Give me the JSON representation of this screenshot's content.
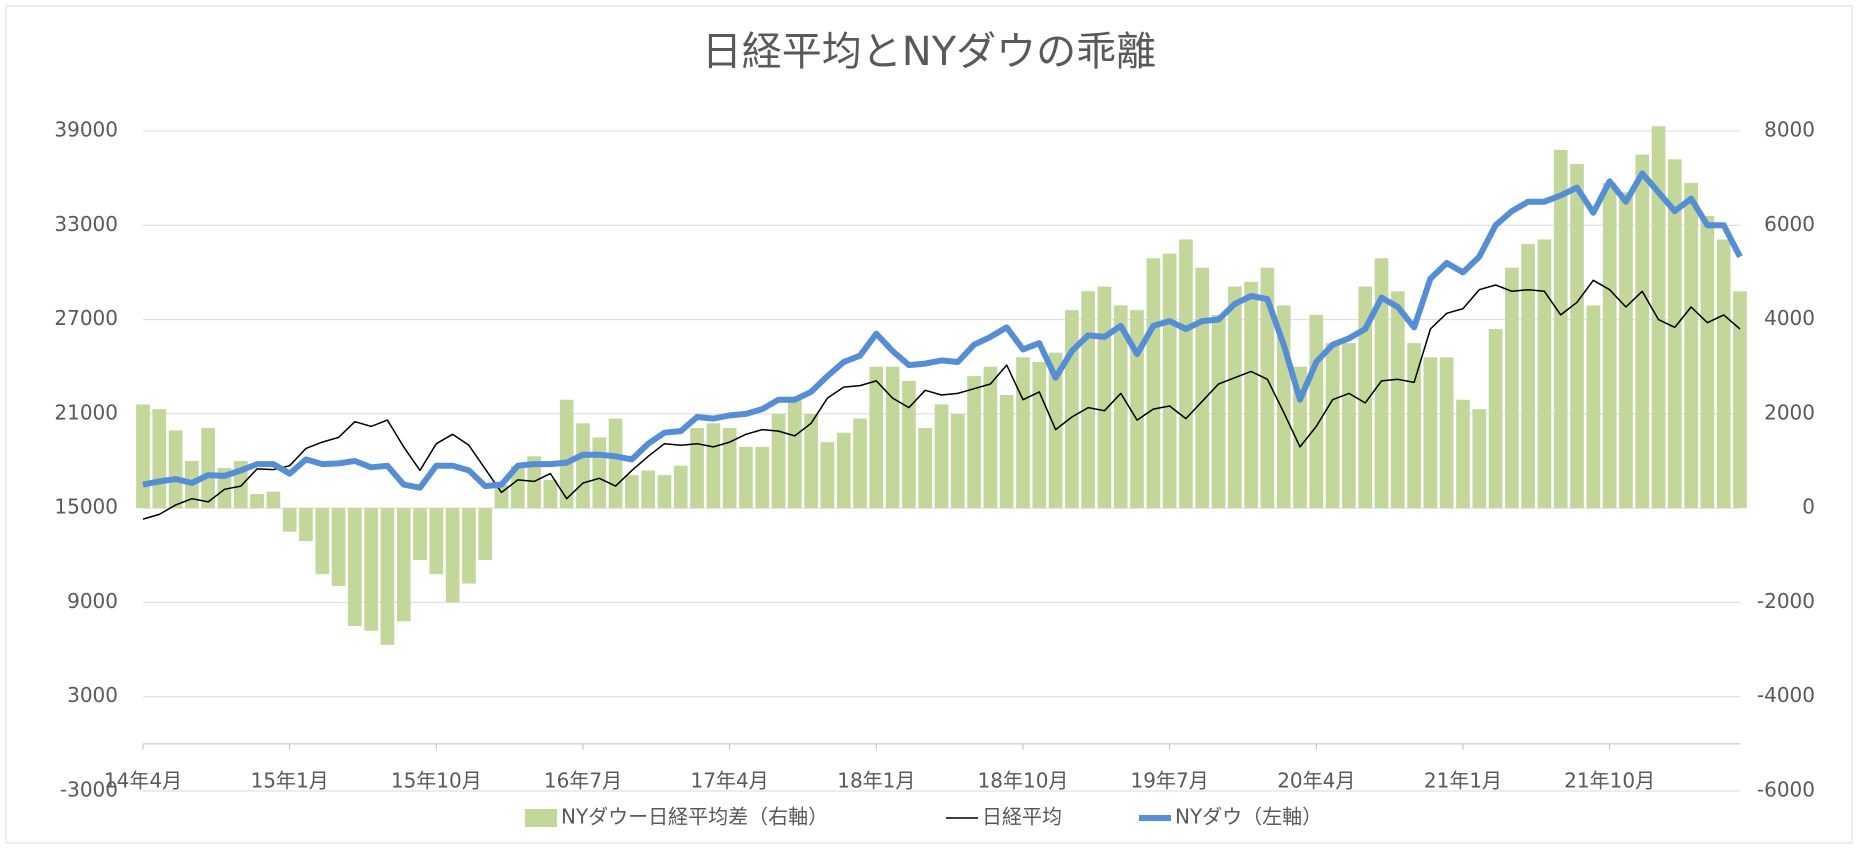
{
  "chart_data": {
    "type": "combo",
    "title": "日経平均とNYダウの乖離",
    "categories": [
      "14年4月",
      null,
      null,
      null,
      null,
      null,
      null,
      null,
      null,
      "15年1月",
      null,
      null,
      null,
      null,
      null,
      null,
      null,
      null,
      "15年10月",
      null,
      null,
      null,
      null,
      null,
      null,
      null,
      null,
      "16年7月",
      null,
      null,
      null,
      null,
      null,
      null,
      null,
      null,
      "17年4月",
      null,
      null,
      null,
      null,
      null,
      null,
      null,
      null,
      "18年1月",
      null,
      null,
      null,
      null,
      null,
      null,
      null,
      null,
      "18年10月",
      null,
      null,
      null,
      null,
      null,
      null,
      null,
      null,
      "19年7月",
      null,
      null,
      null,
      null,
      null,
      null,
      null,
      null,
      "20年4月",
      null,
      null,
      null,
      null,
      null,
      null,
      null,
      null,
      "21年1月",
      null,
      null,
      null,
      null,
      null,
      null,
      null,
      null,
      "21年10月",
      null,
      null,
      null,
      null,
      null,
      null,
      null,
      null
    ],
    "series": [
      {
        "name": "NYダウー日経平均差（右軸）",
        "type": "bar",
        "axis": "y2",
        "color": "#c4d79b",
        "values": [
          2200,
          2100,
          1650,
          1000,
          1700,
          850,
          1000,
          300,
          350,
          -500,
          -700,
          -1400,
          -1650,
          -2500,
          -2600,
          -2900,
          -2400,
          -1100,
          -1400,
          -2000,
          -1600,
          -1100,
          500,
          900,
          1100,
          600,
          2300,
          1800,
          1500,
          1900,
          700,
          800,
          700,
          900,
          1700,
          1800,
          1700,
          1300,
          1300,
          2000,
          2300,
          2000,
          1400,
          1600,
          1900,
          3000,
          3000,
          2700,
          1700,
          2200,
          2000,
          2800,
          3000,
          2400,
          3200,
          3100,
          3300,
          4200,
          4600,
          4700,
          4300,
          4200,
          5300,
          5400,
          5700,
          5100,
          4100,
          4700,
          4800,
          5100,
          4300,
          3000,
          4100,
          3500,
          3500,
          4700,
          5300,
          4600,
          3500,
          3200,
          3200,
          2300,
          2100,
          3800,
          5100,
          5600,
          5700,
          7600,
          7300,
          4300,
          6900,
          6700,
          7500,
          8100,
          7400,
          6900,
          6200,
          5700,
          4600
        ]
      },
      {
        "name": "日経平均",
        "type": "line",
        "color": "#000000",
        "width": 1.5,
        "values": [
          14300,
          14600,
          15200,
          15600,
          15400,
          16200,
          16400,
          17500,
          17450,
          17700,
          18800,
          19200,
          19500,
          20500,
          20200,
          20600,
          18900,
          17400,
          19100,
          19700,
          19000,
          17500,
          16000,
          16800,
          16700,
          17200,
          15600,
          16600,
          16900,
          16400,
          17400,
          18300,
          19100,
          19000,
          19100,
          18900,
          19200,
          19700,
          20000,
          19900,
          19600,
          20400,
          22000,
          22700,
          22800,
          23100,
          22000,
          21400,
          22500,
          22200,
          22300,
          22600,
          22900,
          24100,
          21900,
          22400,
          20000,
          20800,
          21400,
          21200,
          22300,
          20600,
          21300,
          21500,
          20700,
          21800,
          22900,
          23300,
          23700,
          23200,
          21100,
          18900,
          20200,
          21900,
          22300,
          21700,
          23100,
          23200,
          23000,
          26400,
          27400,
          27700,
          28900,
          29200,
          28800,
          28900,
          28800,
          27300,
          28100,
          29500,
          28900,
          27800,
          28800,
          27000,
          26500,
          27800,
          26800,
          27300,
          26400
        ]
      },
      {
        "name": "NYダウ（左軸）",
        "type": "line",
        "color": "#558ed5",
        "width": 6,
        "values": [
          16500,
          16700,
          16850,
          16600,
          17100,
          17050,
          17400,
          17800,
          17800,
          17200,
          18100,
          17800,
          17850,
          18000,
          17600,
          17700,
          16500,
          16300,
          17700,
          17700,
          17400,
          16400,
          16500,
          17700,
          17800,
          17800,
          17900,
          18400,
          18400,
          18300,
          18100,
          19100,
          19800,
          19900,
          20800,
          20700,
          20900,
          21000,
          21300,
          21900,
          21900,
          22400,
          23400,
          24300,
          24700,
          26100,
          25000,
          24100,
          24200,
          24400,
          24300,
          25400,
          25900,
          26500,
          25100,
          25500,
          23300,
          25000,
          26000,
          25900,
          26600,
          24800,
          26600,
          26900,
          26400,
          26900,
          27000,
          28000,
          28500,
          28300,
          25400,
          21900,
          24300,
          25400,
          25800,
          26400,
          28400,
          27800,
          26500,
          29600,
          30600,
          30000,
          31000,
          33000,
          33900,
          34500,
          34500,
          34900,
          35400,
          33800,
          35800,
          34500,
          36300,
          35100,
          33900,
          34700,
          33000,
          33000,
          31000
        ]
      }
    ],
    "ylim": [
      -3000,
      39000
    ],
    "yticks": [
      -3000,
      3000,
      9000,
      15000,
      21000,
      27000,
      33000,
      39000
    ],
    "y2lim": [
      -6000,
      8000
    ],
    "y2ticks": [
      -6000,
      -4000,
      -2000,
      0,
      2000,
      4000,
      6000,
      8000
    ],
    "grid": true,
    "legend": "bottom"
  }
}
